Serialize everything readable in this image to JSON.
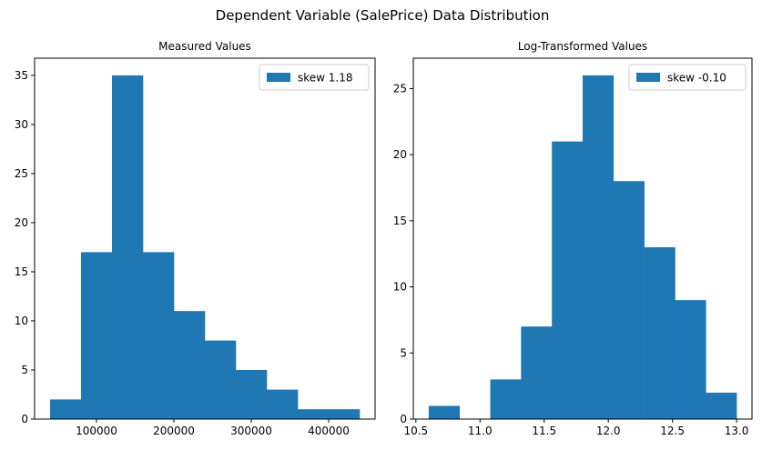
{
  "figure_title": "Dependent Variable (SalePrice) Data Distribution",
  "colors": {
    "bar": "#1f77b4",
    "axis": "#000000",
    "legend_border": "#cccccc"
  },
  "chart_data": [
    {
      "type": "bar",
      "title": "Measured Values",
      "bin_edges": [
        40000,
        80000,
        120000,
        160000,
        200000,
        240000,
        280000,
        320000,
        360000,
        400000,
        440000
      ],
      "values": [
        2,
        17,
        35,
        17,
        11,
        8,
        5,
        3,
        1,
        1
      ],
      "xlim": [
        20000,
        460000
      ],
      "ylim": [
        0,
        36.75
      ],
      "xticks": [
        100000,
        200000,
        300000,
        400000
      ],
      "xtick_labels": [
        "100000",
        "200000",
        "300000",
        "400000"
      ],
      "yticks": [
        0,
        5,
        10,
        15,
        20,
        25,
        30,
        35
      ],
      "ytick_labels": [
        "0",
        "5",
        "10",
        "15",
        "20",
        "25",
        "30",
        "35"
      ],
      "legend": "skew 1.18",
      "legend_position": "top-right",
      "grid": false
    },
    {
      "type": "bar",
      "title": "Log-Transformed Values",
      "bin_edges": [
        10.6,
        10.84,
        11.08,
        11.32,
        11.56,
        11.8,
        12.04,
        12.28,
        12.52,
        12.76,
        13.0
      ],
      "values": [
        1,
        0,
        3,
        7,
        21,
        26,
        18,
        13,
        9,
        2
      ],
      "xlim": [
        10.48,
        13.12
      ],
      "ylim": [
        0,
        27.3
      ],
      "xticks": [
        10.5,
        11.0,
        11.5,
        12.0,
        12.5,
        13.0
      ],
      "xtick_labels": [
        "10.5",
        "11.0",
        "11.5",
        "12.0",
        "12.5",
        "13.0"
      ],
      "yticks": [
        0,
        5,
        10,
        15,
        20,
        25
      ],
      "ytick_labels": [
        "0",
        "5",
        "10",
        "15",
        "20",
        "25"
      ],
      "legend": "skew -0.10",
      "legend_position": "top-right",
      "grid": false
    }
  ]
}
